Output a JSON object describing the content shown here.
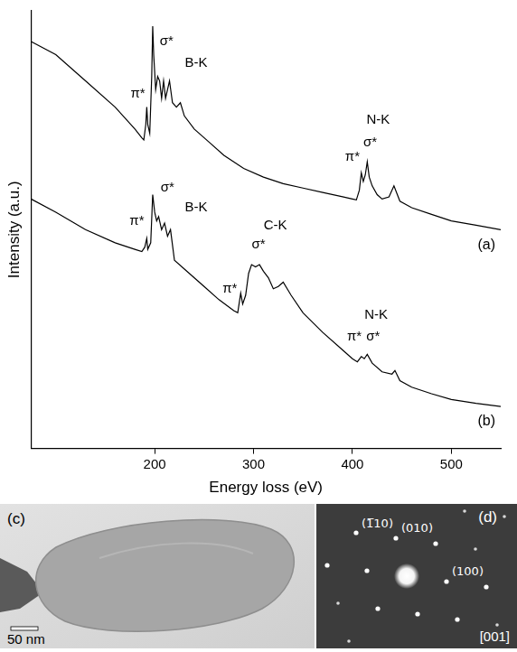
{
  "chart_data": {
    "type": "line",
    "x_label": "Energy loss (eV)",
    "y_label": "Intensity (a.u.)",
    "xlim": [
      75,
      550
    ],
    "xticks": [
      200,
      300,
      400,
      500
    ],
    "ylim": [
      0,
      100
    ],
    "tick_labels": "x",
    "grid": false,
    "series": [
      {
        "name": "(a)",
        "color": "#000000",
        "x": [
          75,
          100,
          130,
          160,
          180,
          187,
          189,
          191,
          192,
          193,
          195,
          197,
          198,
          199,
          201,
          203,
          205,
          207,
          209,
          211,
          213,
          215,
          218,
          222,
          226,
          230,
          240,
          255,
          270,
          290,
          310,
          330,
          350,
          370,
          390,
          400,
          404,
          407,
          409,
          411,
          413,
          415,
          417,
          420,
          425,
          430,
          437,
          442,
          448,
          460,
          480,
          500,
          525,
          550
        ],
        "values": [
          93,
          90,
          84,
          78,
          73,
          71,
          70.5,
          74,
          78,
          74,
          72,
          85,
          96.5,
          90,
          82,
          85,
          84,
          80,
          84,
          80,
          82,
          84,
          79,
          78,
          79,
          76,
          73,
          70,
          67,
          64,
          62,
          60.5,
          59.5,
          58.5,
          57.5,
          57,
          56.8,
          59,
          63,
          61,
          62.5,
          65.5,
          62,
          60,
          58,
          57,
          57.5,
          60,
          56.5,
          55,
          53.5,
          52,
          51,
          50
        ]
      },
      {
        "name": "(b)",
        "color": "#000000",
        "x": [
          75,
          100,
          130,
          160,
          180,
          187,
          190,
          192,
          193,
          196,
          198,
          200,
          202,
          204,
          207,
          210,
          213,
          216,
          220,
          235,
          250,
          265,
          280,
          284,
          286,
          287,
          289,
          292,
          295,
          298,
          302,
          306,
          310,
          315,
          320,
          325,
          330,
          338,
          350,
          370,
          390,
          400,
          405,
          409,
          412,
          415,
          420,
          430,
          440,
          443,
          448,
          460,
          480,
          500,
          525,
          550
        ],
        "values": [
          57,
          54,
          50,
          47,
          45.5,
          45,
          46,
          48,
          45.5,
          47,
          58,
          54,
          52,
          53,
          50,
          51.5,
          48.5,
          50,
          43,
          40,
          37,
          34,
          31.5,
          31,
          34,
          35.5,
          33,
          35,
          40,
          42,
          41.5,
          42,
          40.5,
          39,
          36.5,
          37,
          38,
          35,
          31,
          26.5,
          22.5,
          20.5,
          19.8,
          21,
          20.5,
          21.5,
          19.5,
          17.5,
          17,
          17.8,
          15.5,
          14,
          12.5,
          11.2,
          10.3,
          9.6
        ]
      }
    ],
    "annotations": [
      {
        "text": "π*",
        "x": 183,
        "y": 81
      },
      {
        "text": "σ*",
        "x": 212,
        "y": 93
      },
      {
        "text": "B-K",
        "x": 242,
        "y": 88
      },
      {
        "text": "N-K",
        "x": 426,
        "y": 75
      },
      {
        "text": "π*",
        "x": 400,
        "y": 66.5
      },
      {
        "text": "σ*",
        "x": 418,
        "y": 70
      },
      {
        "text": "π*",
        "x": 182,
        "y": 52
      },
      {
        "text": "σ*",
        "x": 213,
        "y": 59.5
      },
      {
        "text": "B-K",
        "x": 242,
        "y": 55
      },
      {
        "text": "C-K",
        "x": 322,
        "y": 51
      },
      {
        "text": "π*",
        "x": 276,
        "y": 36.5
      },
      {
        "text": "σ*",
        "x": 305,
        "y": 46.5
      },
      {
        "text": "N-K",
        "x": 424,
        "y": 30.5
      },
      {
        "text": "π*",
        "x": 402,
        "y": 25.5
      },
      {
        "text": "σ*",
        "x": 421,
        "y": 25.5
      }
    ]
  },
  "panels": [
    {
      "letter": "(c)",
      "scale_bar": "50 nm"
    },
    {
      "letter": "(d)",
      "spot_labels": [
        "(1̅10)",
        "(010)",
        "(100)"
      ],
      "zone_axis": "[001]"
    }
  ]
}
